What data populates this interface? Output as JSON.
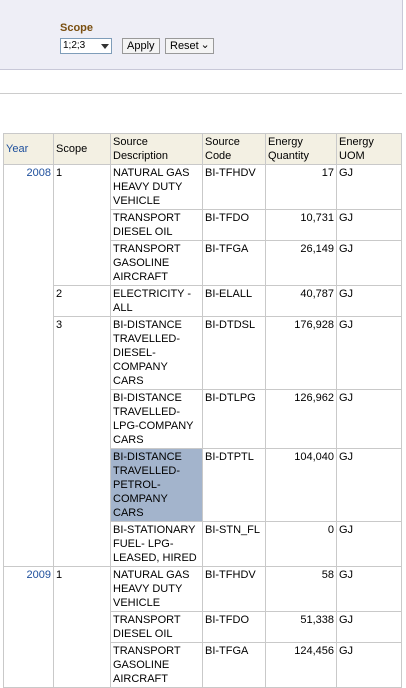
{
  "filter": {
    "label": "Scope",
    "select": "1;2;3",
    "apply": "Apply",
    "reset": "Reset"
  },
  "table": {
    "headers": [
      "Year",
      "Scope",
      "Source Description",
      "Source Code",
      "Energy Quantity",
      "Energy UOM"
    ],
    "years": [
      {
        "year": "2008",
        "scopes": [
          {
            "scope": "1",
            "rows": [
              {
                "desc": "NATURAL GAS HEAVY DUTY VEHICLE",
                "code": "BI-TFHDV",
                "qty": "17",
                "uom": "GJ"
              },
              {
                "desc": "TRANSPORT DIESEL OIL",
                "code": "BI-TFDO",
                "qty": "10,731",
                "uom": "GJ"
              },
              {
                "desc": "TRANSPORT GASOLINE AIRCRAFT",
                "code": "BI-TFGA",
                "qty": "26,149",
                "uom": "GJ"
              }
            ]
          },
          {
            "scope": "2",
            "rows": [
              {
                "desc": "ELECTRICITY - ALL",
                "code": "BI-ELALL",
                "qty": "40,787",
                "uom": "GJ"
              }
            ]
          },
          {
            "scope": "3",
            "rows": [
              {
                "desc": "BI-DISTANCE TRAVELLED-DIESEL-COMPANY CARS",
                "code": "BI-DTDSL",
                "qty": "176,928",
                "uom": "GJ"
              },
              {
                "desc": "BI-DISTANCE TRAVELLED-LPG-COMPANY CARS",
                "code": "BI-DTLPG",
                "qty": "126,962",
                "uom": "GJ"
              },
              {
                "desc": "BI-DISTANCE TRAVELLED-PETROL-COMPANY CARS",
                "code": "BI-DTPTL",
                "qty": "104,040",
                "uom": "GJ",
                "selected": true
              },
              {
                "desc": "BI-STATIONARY FUEL- LPG-LEASED, HIRED",
                "code": "BI-STN_FL",
                "qty": "0",
                "uom": "GJ"
              }
            ]
          }
        ]
      },
      {
        "year": "2009",
        "scopes": [
          {
            "scope": "1",
            "rows": [
              {
                "desc": "NATURAL GAS HEAVY DUTY VEHICLE",
                "code": "BI-TFHDV",
                "qty": "58",
                "uom": "GJ"
              },
              {
                "desc": "TRANSPORT DIESEL OIL",
                "code": "BI-TFDO",
                "qty": "51,338",
                "uom": "GJ"
              },
              {
                "desc": "TRANSPORT GASOLINE AIRCRAFT",
                "code": "BI-TFGA",
                "qty": "124,456",
                "uom": "GJ"
              }
            ]
          }
        ]
      }
    ]
  }
}
